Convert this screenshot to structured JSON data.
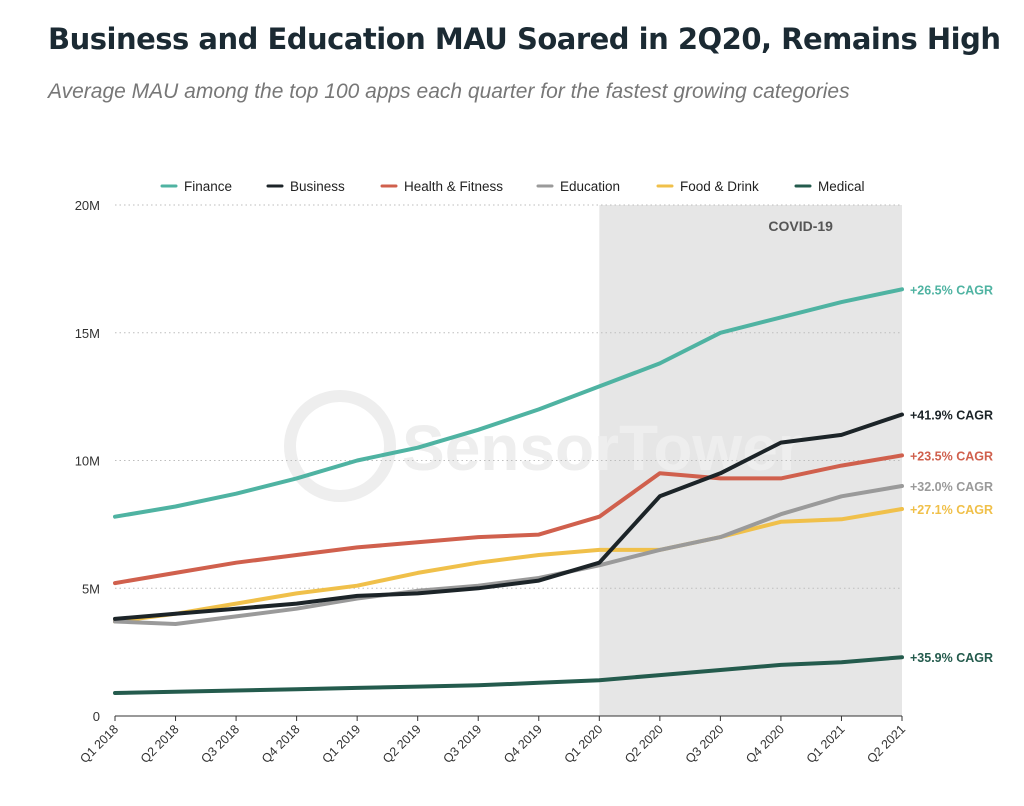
{
  "header": {
    "title": "Business and Education MAU Soared in 2Q20, Remains High",
    "subtitle": "Average MAU among the top 100 apps each quarter for the fastest growing categories"
  },
  "watermark": "SensorTower",
  "chart_data": {
    "type": "line",
    "categories": [
      "Q1 2018",
      "Q2 2018",
      "Q3 2018",
      "Q4 2018",
      "Q1 2019",
      "Q2 2019",
      "Q3 2019",
      "Q4 2019",
      "Q1 2020",
      "Q2 2020",
      "Q3 2020",
      "Q4 2020",
      "Q1 2021",
      "Q2 2021"
    ],
    "y_ticks": [
      "0",
      "5M",
      "10M",
      "15M",
      "20M"
    ],
    "ylim": [
      0,
      20
    ],
    "y_unit": "M",
    "grid": "horizontal dotted",
    "legend_position": "top",
    "annotation": {
      "label": "COVID-19",
      "from_category": "Q1 2020",
      "to_category": "Q2 2021",
      "color": "#e6e6e6"
    },
    "series": [
      {
        "name": "Finance",
        "color": "#4fb3a2",
        "cagr_label": "+26.5% CAGR",
        "values": [
          7.8,
          8.2,
          8.7,
          9.3,
          10.0,
          10.5,
          11.2,
          12.0,
          12.9,
          13.8,
          15.0,
          15.6,
          16.2,
          16.7
        ]
      },
      {
        "name": "Business",
        "color": "#1c2428",
        "cagr_label": "+41.9% CAGR",
        "values": [
          3.8,
          4.0,
          4.2,
          4.4,
          4.7,
          4.8,
          5.0,
          5.3,
          6.0,
          8.6,
          9.5,
          10.7,
          11.0,
          11.8
        ]
      },
      {
        "name": "Health & Fitness",
        "color": "#d0604d",
        "cagr_label": "+23.5% CAGR",
        "values": [
          5.2,
          5.6,
          6.0,
          6.3,
          6.6,
          6.8,
          7.0,
          7.1,
          7.8,
          9.5,
          9.3,
          9.3,
          9.8,
          10.2
        ]
      },
      {
        "name": "Education",
        "color": "#9a9a9a",
        "cagr_label": "+32.0% CAGR",
        "values": [
          3.7,
          3.6,
          3.9,
          4.2,
          4.6,
          4.9,
          5.1,
          5.4,
          5.9,
          6.5,
          7.0,
          7.9,
          8.6,
          9.0
        ]
      },
      {
        "name": "Food & Drink",
        "color": "#f0c04a",
        "cagr_label": "+27.1% CAGR",
        "values": [
          3.7,
          4.0,
          4.4,
          4.8,
          5.1,
          5.6,
          6.0,
          6.3,
          6.5,
          6.5,
          7.0,
          7.6,
          7.7,
          8.1
        ]
      },
      {
        "name": "Medical",
        "color": "#245b4d",
        "cagr_label": "+35.9% CAGR",
        "values": [
          0.9,
          0.95,
          1.0,
          1.05,
          1.1,
          1.15,
          1.2,
          1.3,
          1.4,
          1.6,
          1.8,
          2.0,
          2.1,
          2.3
        ]
      }
    ]
  }
}
